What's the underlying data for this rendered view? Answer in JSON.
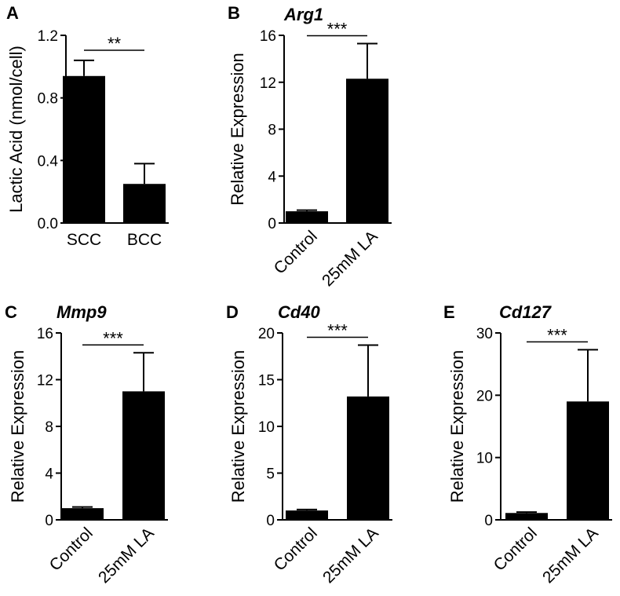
{
  "figure": {
    "background": "#ffffff",
    "bar_color": "#000000"
  },
  "chart_data": [
    {
      "type": "bar",
      "panel_label": "A",
      "title": "",
      "ylabel": "Lactic Acid (nmol/cell)",
      "categories": [
        "SCC",
        "BCC"
      ],
      "values": [
        0.94,
        0.25
      ],
      "errors": [
        0.1,
        0.13
      ],
      "ylim": [
        0,
        1.2
      ],
      "yticks": [
        0,
        0.4,
        0.8,
        1.2
      ],
      "ytick_labels": [
        "0.0",
        "0.4",
        "0.8",
        "1.2"
      ],
      "significance": "**",
      "rotated_categories": false
    },
    {
      "type": "bar",
      "panel_label": "B",
      "title": "Arg1",
      "ylabel": "Relative Expression",
      "categories": [
        "Control",
        "25mM LA"
      ],
      "values": [
        1.0,
        12.3
      ],
      "errors": [
        0.1,
        3.0
      ],
      "ylim": [
        0,
        16
      ],
      "yticks": [
        0,
        4,
        8,
        12,
        16
      ],
      "ytick_labels": [
        "0",
        "4",
        "8",
        "12",
        "16"
      ],
      "significance": "***",
      "rotated_categories": true
    },
    {
      "type": "bar",
      "panel_label": "C",
      "title": "Mmp9",
      "ylabel": "Relative Expression",
      "categories": [
        "Control",
        "25mM LA"
      ],
      "values": [
        1.0,
        11.0
      ],
      "errors": [
        0.1,
        3.3
      ],
      "ylim": [
        0,
        16
      ],
      "yticks": [
        0,
        4,
        8,
        12,
        16
      ],
      "ytick_labels": [
        "0",
        "4",
        "8",
        "12",
        "16"
      ],
      "significance": "***",
      "rotated_categories": true
    },
    {
      "type": "bar",
      "panel_label": "D",
      "title": "Cd40",
      "ylabel": "Relative Expression",
      "categories": [
        "Control",
        "25mM LA"
      ],
      "values": [
        1.0,
        13.2
      ],
      "errors": [
        0.1,
        5.5
      ],
      "ylim": [
        0,
        20
      ],
      "yticks": [
        0,
        5,
        10,
        15,
        20
      ],
      "ytick_labels": [
        "0",
        "5",
        "10",
        "15",
        "20"
      ],
      "significance": "***",
      "rotated_categories": true
    },
    {
      "type": "bar",
      "panel_label": "E",
      "title": "Cd127",
      "ylabel": "Relative Expression",
      "categories": [
        "Control",
        "25mM LA"
      ],
      "values": [
        1.1,
        19.0
      ],
      "errors": [
        0.15,
        8.3
      ],
      "ylim": [
        0,
        30
      ],
      "yticks": [
        0,
        10,
        20,
        30
      ],
      "ytick_labels": [
        "0",
        "10",
        "20",
        "30"
      ],
      "significance": "***",
      "rotated_categories": true
    }
  ]
}
